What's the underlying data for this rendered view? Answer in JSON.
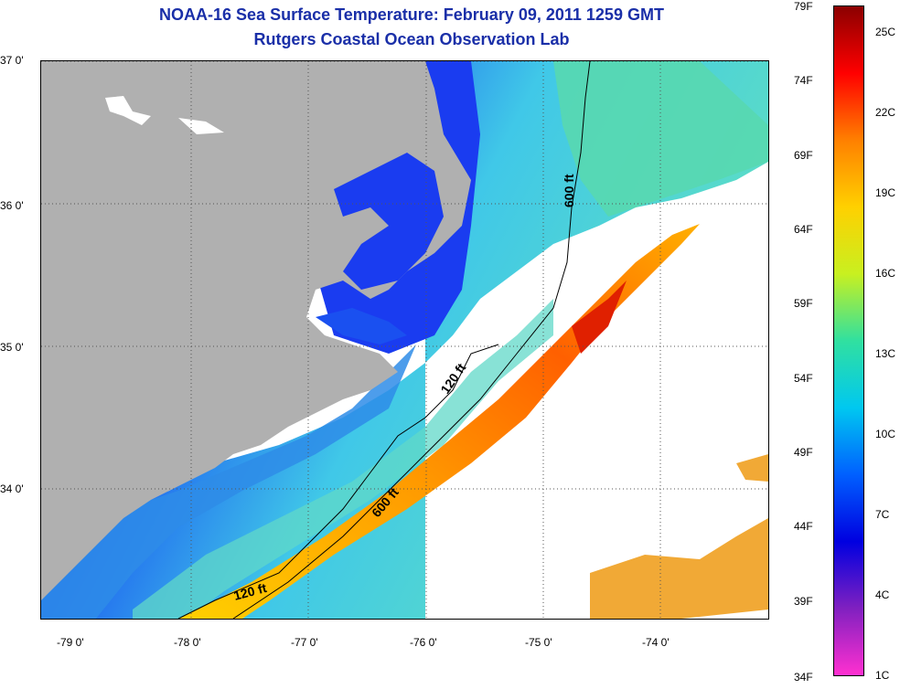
{
  "title": "NOAA-16 Sea Surface Temperature:  February 09, 2011 1259 GMT",
  "subtitle": "Rutgers Coastal Ocean Observation Lab",
  "lat_labels": [
    "37 0'",
    "36 0'",
    "35 0'",
    "34 0'"
  ],
  "lon_labels": [
    "-79 0'",
    "-78 0'",
    "-77 0'",
    "-76 0'",
    "-75 0'",
    "-74 0'"
  ],
  "contours": {
    "shelf_120": "120 ft",
    "shelf_120_b": "120 ft",
    "slope_600": "600 ft",
    "slope_600_b": "600 ft"
  },
  "colorbar": {
    "fahrenheit": [
      "79F",
      "74F",
      "69F",
      "64F",
      "59F",
      "54F",
      "49F",
      "44F",
      "39F",
      "34F"
    ],
    "celsius": [
      "25C",
      "22C",
      "19C",
      "16C",
      "13C",
      "10C",
      "7C",
      "4C",
      "1C"
    ],
    "colors": [
      "#8b0000",
      "#ff0000",
      "#ff8000",
      "#ffd000",
      "#c8f020",
      "#30e0a0",
      "#00c8f0",
      "#0060ff",
      "#0000e0",
      "#8020c0",
      "#ff30d0"
    ]
  },
  "land_color": "#b0b0b0"
}
